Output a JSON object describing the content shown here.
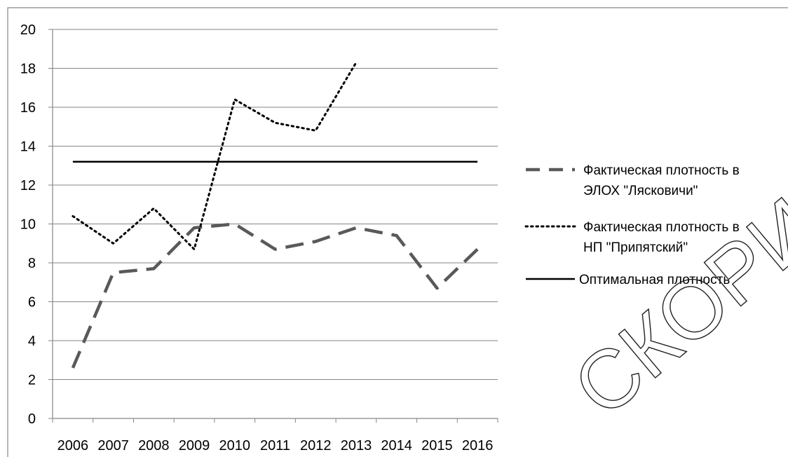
{
  "chart_data": {
    "type": "line",
    "title": "",
    "xlabel": "",
    "ylabel": "",
    "categories": [
      "2006",
      "2007",
      "2008",
      "2009",
      "2010",
      "2011",
      "2012",
      "2013",
      "2014",
      "2015",
      "2016"
    ],
    "ylim": [
      0,
      20
    ],
    "yticks": [
      0,
      2,
      4,
      6,
      8,
      10,
      12,
      14,
      16,
      18,
      20
    ],
    "grid": true,
    "legend_position": "right",
    "series": [
      {
        "name": "Фактическая плотность в ЭЛОХ \"Лясковичи\"",
        "legend_lines": [
          "Фактическая плотность в",
          "ЭЛОХ \"Лясковичи\""
        ],
        "values": [
          2.6,
          7.5,
          7.7,
          9.8,
          10.0,
          8.7,
          9.1,
          9.8,
          9.4,
          6.7,
          8.7
        ],
        "style": "dashed",
        "color": "#595959"
      },
      {
        "name": "Фактическая плотность в НП \"Припятский\"",
        "legend_lines": [
          "Фактическая плотность в",
          "НП \"Припятский\""
        ],
        "values": [
          10.4,
          9.0,
          10.8,
          8.7,
          16.4,
          15.2,
          14.8,
          18.3,
          null,
          null,
          null
        ],
        "style": "dotted",
        "color": "#000000"
      },
      {
        "name": "Оптимальная плотность",
        "legend_lines": [
          "Оптимальная плотность"
        ],
        "values": [
          13.2,
          13.2,
          13.2,
          13.2,
          13.2,
          13.2,
          13.2,
          13.2,
          13.2,
          13.2,
          13.2
        ],
        "style": "solid",
        "color": "#000000"
      }
    ]
  },
  "watermark": {
    "text": "СКОРИ"
  },
  "colors": {
    "grid": "#868686",
    "axis": "#868686",
    "frame": "#868686",
    "background": "#ffffff"
  }
}
